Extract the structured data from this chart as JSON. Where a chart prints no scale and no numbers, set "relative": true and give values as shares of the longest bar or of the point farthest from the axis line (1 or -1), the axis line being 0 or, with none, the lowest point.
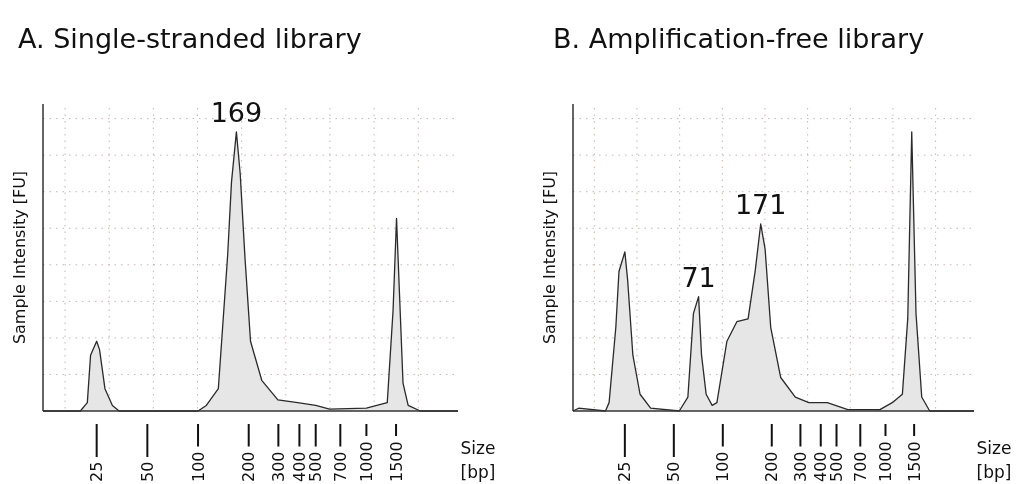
{
  "chart_data": [
    {
      "type": "area",
      "title": "A. Single-stranded library",
      "ylabel": "Sample Intensity [FU]",
      "xlabel": "Size [bp]",
      "relative": true,
      "grid": true,
      "log": "x",
      "xlim": [
        12,
        3500
      ],
      "xticks": [
        25,
        50,
        100,
        200,
        300,
        400,
        500,
        700,
        1000,
        1500
      ],
      "annotations": [
        {
          "text": "169",
          "x": 169,
          "y": 1
        }
      ],
      "series": [
        {
          "color": "#e6e6e6",
          "x": [
            12,
            20,
            22,
            23,
            25,
            26,
            28,
            31,
            34,
            100,
            112,
            132,
            150,
            158,
            169,
            178,
            190,
            205,
            239,
            298,
            391,
            500,
            604,
            1000,
            1330,
            1440,
            1510,
            1570,
            1650,
            1770,
            2090,
            3500
          ],
          "values": [
            0,
            0,
            0.03,
            0.2,
            0.25,
            0.22,
            0.08,
            0.02,
            0,
            0,
            0.02,
            0.08,
            0.56,
            0.82,
            1,
            0.85,
            0.55,
            0.25,
            0.11,
            0.04,
            0.03,
            0.02,
            0.007,
            0.01,
            0.03,
            0.36,
            0.69,
            0.43,
            0.1,
            0.02,
            0,
            0
          ]
        }
      ]
    },
    {
      "type": "area",
      "title": "B. Amplification-free library",
      "ylabel": "Sample Intensity [FU]",
      "xlabel": "Size [bp]",
      "relative": true,
      "grid": true,
      "log": "x",
      "xlim": [
        12,
        3500
      ],
      "xticks": [
        25,
        50,
        100,
        200,
        300,
        400,
        500,
        700,
        1000,
        1500
      ],
      "annotations": [
        {
          "text": "71",
          "x": 71,
          "y": 0.41
        },
        {
          "text": "171",
          "x": 171,
          "y": 0.67
        }
      ],
      "series": [
        {
          "color": "#e6e6e6",
          "x": [
            12,
            13,
            19,
            20,
            22,
            23,
            25,
            26,
            28,
            31,
            36,
            54,
            61,
            66,
            71,
            74,
            79,
            86,
            92,
            106,
            122,
            143,
            158,
            171,
            182,
            197,
            227,
            279,
            338,
            439,
            587,
            924,
            1100,
            1270,
            1370,
            1450,
            1540,
            1670,
            1870,
            3500
          ],
          "values": [
            0,
            0.01,
            0,
            0.03,
            0.3,
            0.5,
            0.57,
            0.47,
            0.2,
            0.06,
            0.01,
            0,
            0.05,
            0.35,
            0.41,
            0.2,
            0.06,
            0.02,
            0.03,
            0.25,
            0.32,
            0.33,
            0.5,
            0.67,
            0.58,
            0.3,
            0.12,
            0.05,
            0.03,
            0.03,
            0.005,
            0.005,
            0.03,
            0.06,
            0.33,
            1,
            0.35,
            0.05,
            0,
            0
          ]
        }
      ]
    }
  ]
}
